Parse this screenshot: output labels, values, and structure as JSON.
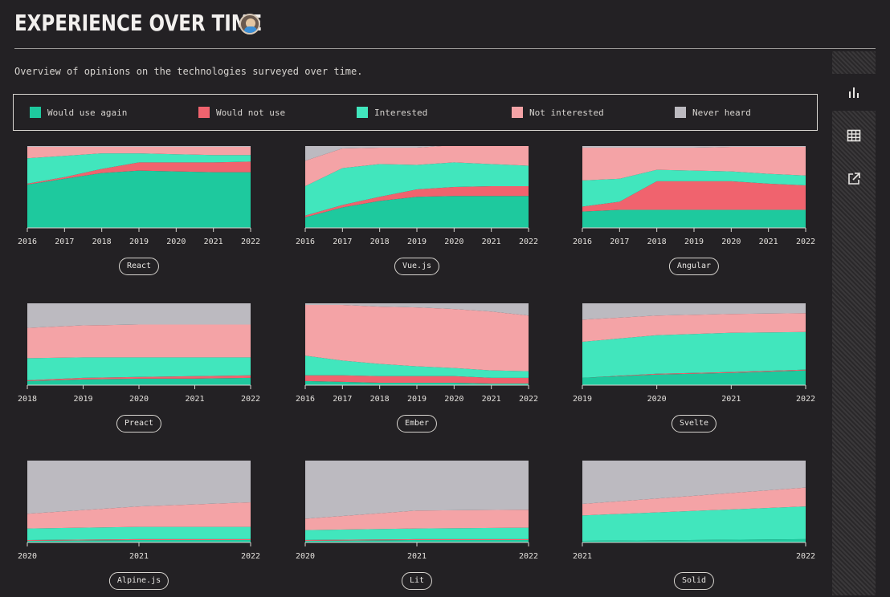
{
  "header": {
    "title": "EXPERIENCE OVER TIME",
    "subtitle": "Overview of opinions on the technologies surveyed over time."
  },
  "legend": [
    {
      "label": "Would use again",
      "color": "#1ec99e"
    },
    {
      "label": "Would not use",
      "color": "#f0636e"
    },
    {
      "label": "Interested",
      "color": "#41e6bd"
    },
    {
      "label": "Not interested",
      "color": "#f4a3a6"
    },
    {
      "label": "Never heard",
      "color": "#bcbac0"
    }
  ],
  "sidebar": [
    {
      "icon": "bar-chart-icon",
      "active": true
    },
    {
      "icon": "table-icon",
      "active": false
    },
    {
      "icon": "external-link-icon",
      "active": false
    }
  ],
  "chart_data": [
    {
      "type": "area",
      "name": "React",
      "x": [
        2016,
        2017,
        2018,
        2019,
        2020,
        2021,
        2022
      ],
      "series": [
        {
          "name": "Would use again",
          "values": [
            53,
            60,
            67,
            70,
            69,
            68,
            68
          ]
        },
        {
          "name": "Would not use",
          "values": [
            1,
            2,
            5,
            10,
            11,
            12,
            13
          ]
        },
        {
          "name": "Interested",
          "values": [
            31,
            26,
            19,
            11,
            10,
            9,
            8
          ]
        },
        {
          "name": "Not interested",
          "values": [
            14,
            11,
            8,
            8,
            9,
            10,
            10
          ]
        },
        {
          "name": "Never heard",
          "values": [
            1,
            1,
            1,
            1,
            1,
            1,
            1
          ]
        }
      ]
    },
    {
      "type": "area",
      "name": "Vue.js",
      "x": [
        2016,
        2017,
        2018,
        2019,
        2020,
        2021,
        2022
      ],
      "series": [
        {
          "name": "Would use again",
          "values": [
            13,
            25,
            33,
            38,
            39,
            39,
            39
          ]
        },
        {
          "name": "Would not use",
          "values": [
            2,
            3,
            5,
            9,
            11,
            12,
            12
          ]
        },
        {
          "name": "Interested",
          "values": [
            36,
            45,
            40,
            30,
            30,
            27,
            25
          ]
        },
        {
          "name": "Not interested",
          "values": [
            31,
            24,
            20,
            21,
            21,
            22,
            24
          ]
        },
        {
          "name": "Never heard",
          "values": [
            18,
            3,
            2,
            2,
            0,
            0,
            0
          ]
        }
      ]
    },
    {
      "type": "area",
      "name": "Angular",
      "x": [
        2016,
        2017,
        2018,
        2019,
        2020,
        2021,
        2022
      ],
      "series": [
        {
          "name": "Would use again",
          "values": [
            20,
            22,
            22,
            22,
            22,
            22,
            22
          ]
        },
        {
          "name": "Would not use",
          "values": [
            6,
            10,
            35,
            35,
            35,
            32,
            30
          ]
        },
        {
          "name": "Interested",
          "values": [
            32,
            28,
            14,
            13,
            12,
            12,
            12
          ]
        },
        {
          "name": "Not interested",
          "values": [
            40,
            38,
            27,
            28,
            30,
            33,
            35
          ]
        },
        {
          "name": "Never heard",
          "values": [
            2,
            2,
            2,
            2,
            1,
            1,
            1
          ]
        }
      ]
    },
    {
      "type": "area",
      "name": "Preact",
      "x": [
        2018,
        2019,
        2020,
        2021,
        2022
      ],
      "series": [
        {
          "name": "Would use again",
          "values": [
            5,
            7,
            8,
            8,
            9
          ]
        },
        {
          "name": "Would not use",
          "values": [
            1,
            2,
            2,
            3,
            3
          ]
        },
        {
          "name": "Interested",
          "values": [
            27,
            25,
            24,
            23,
            22
          ]
        },
        {
          "name": "Not interested",
          "values": [
            37,
            39,
            40,
            40,
            40
          ]
        },
        {
          "name": "Never heard",
          "values": [
            30,
            27,
            26,
            26,
            26
          ]
        }
      ]
    },
    {
      "type": "area",
      "name": "Ember",
      "x": [
        2016,
        2017,
        2018,
        2019,
        2020,
        2021,
        2022
      ],
      "series": [
        {
          "name": "Would use again",
          "values": [
            5,
            4,
            3,
            3,
            3,
            2,
            2
          ]
        },
        {
          "name": "Would not use",
          "values": [
            7,
            8,
            8,
            8,
            8,
            7,
            7
          ]
        },
        {
          "name": "Interested",
          "values": [
            24,
            18,
            15,
            12,
            10,
            9,
            8
          ]
        },
        {
          "name": "Not interested",
          "values": [
            62,
            68,
            70,
            72,
            72,
            72,
            68
          ]
        },
        {
          "name": "Never heard",
          "values": [
            2,
            2,
            4,
            5,
            7,
            10,
            15
          ]
        }
      ]
    },
    {
      "type": "area",
      "name": "Svelte",
      "x": [
        2019,
        2020,
        2021,
        2022
      ],
      "series": [
        {
          "name": "Would use again",
          "values": [
            9,
            13,
            15,
            18
          ]
        },
        {
          "name": "Would not use",
          "values": [
            0,
            1,
            1,
            1
          ]
        },
        {
          "name": "Interested",
          "values": [
            44,
            47,
            48,
            46
          ]
        },
        {
          "name": "Not interested",
          "values": [
            27,
            24,
            23,
            23
          ]
        },
        {
          "name": "Never heard",
          "values": [
            20,
            15,
            13,
            12
          ]
        }
      ]
    },
    {
      "type": "area",
      "name": "Alpine.js",
      "x": [
        2020,
        2021,
        2022
      ],
      "series": [
        {
          "name": "Would use again",
          "values": [
            2,
            3,
            3
          ]
        },
        {
          "name": "Would not use",
          "values": [
            1,
            1,
            1
          ]
        },
        {
          "name": "Interested",
          "values": [
            14,
            15,
            15
          ]
        },
        {
          "name": "Not interested",
          "values": [
            18,
            25,
            30
          ]
        },
        {
          "name": "Never heard",
          "values": [
            65,
            56,
            51
          ]
        }
      ]
    },
    {
      "type": "area",
      "name": "Lit",
      "x": [
        2020,
        2021,
        2022
      ],
      "series": [
        {
          "name": "Would use again",
          "values": [
            2,
            3,
            3
          ]
        },
        {
          "name": "Would not use",
          "values": [
            1,
            1,
            1
          ]
        },
        {
          "name": "Interested",
          "values": [
            12,
            13,
            14
          ]
        },
        {
          "name": "Not interested",
          "values": [
            14,
            22,
            22
          ]
        },
        {
          "name": "Never heard",
          "values": [
            71,
            61,
            60
          ]
        }
      ]
    },
    {
      "type": "area",
      "name": "Solid",
      "x": [
        2021,
        2022
      ],
      "series": [
        {
          "name": "Would use again",
          "values": [
            2,
            4
          ]
        },
        {
          "name": "Would not use",
          "values": [
            0,
            0
          ]
        },
        {
          "name": "Interested",
          "values": [
            31,
            40
          ]
        },
        {
          "name": "Not interested",
          "values": [
            14,
            23
          ]
        },
        {
          "name": "Never heard",
          "values": [
            53,
            33
          ]
        }
      ]
    }
  ]
}
